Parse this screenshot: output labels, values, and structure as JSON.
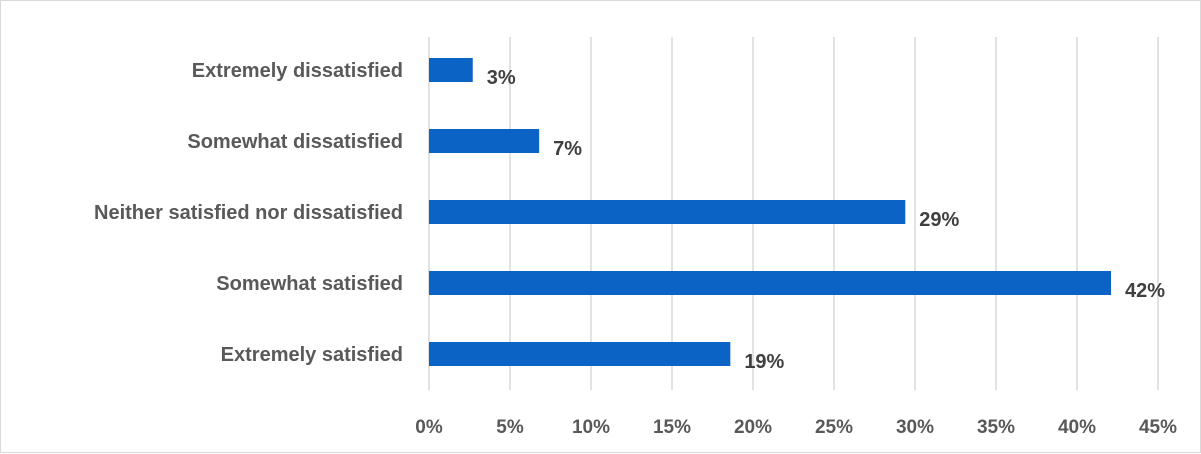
{
  "chart_data": {
    "type": "bar",
    "orientation": "horizontal",
    "title": "",
    "xlabel": "",
    "ylabel": "",
    "categories": [
      "Extremely dissatisfied",
      "Somewhat dissatisfied",
      "Neither satisfied nor dissatisfied",
      "Somewhat satisfied",
      "Extremely satisfied"
    ],
    "values": [
      2.7,
      6.8,
      29.4,
      42.1,
      18.6
    ],
    "value_labels": [
      "3%",
      "7%",
      "29%",
      "42%",
      "19%"
    ],
    "xlim": [
      0,
      45
    ],
    "x_ticks": [
      0,
      5,
      10,
      15,
      20,
      25,
      30,
      35,
      40,
      45
    ],
    "x_tick_labels": [
      "0%",
      "5%",
      "10%",
      "15%",
      "20%",
      "25%",
      "30%",
      "35%",
      "40%",
      "45%"
    ],
    "grid": "vertical",
    "legend": "none",
    "bar_color": "#0b63c5"
  }
}
